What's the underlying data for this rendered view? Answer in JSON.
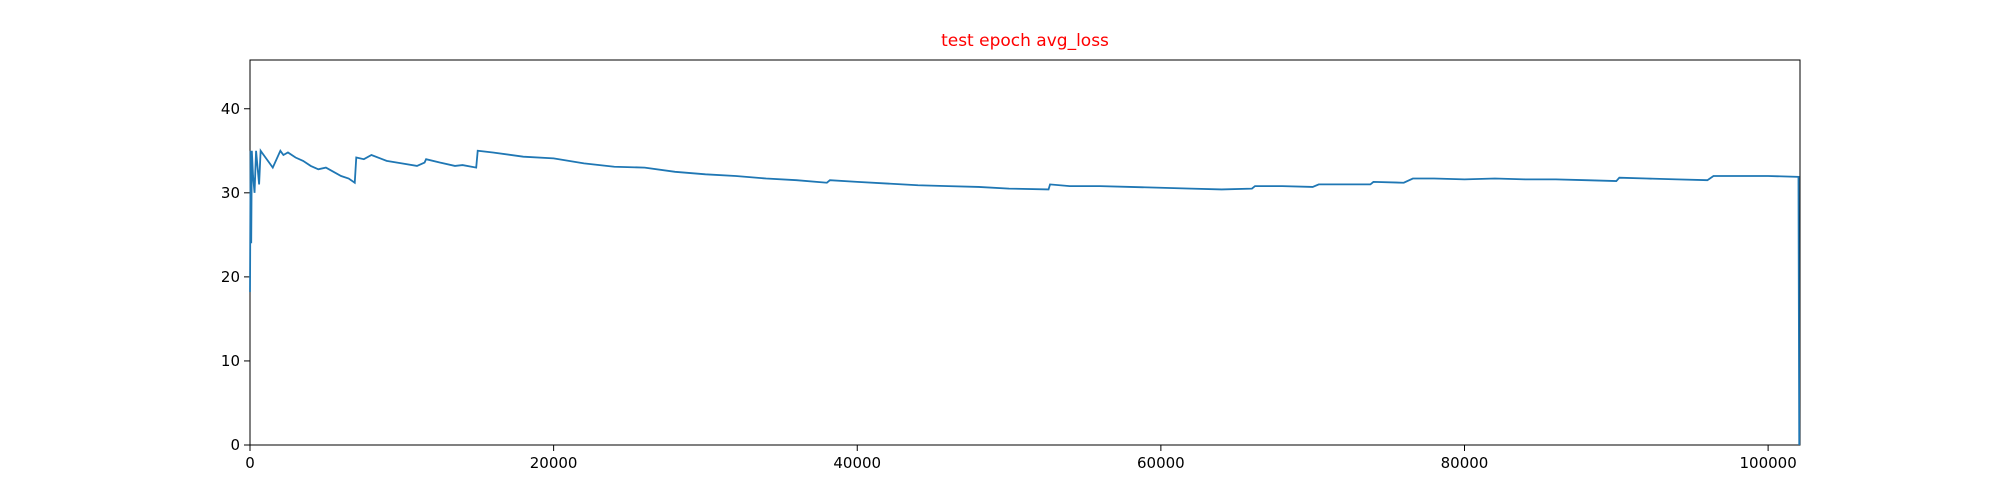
{
  "chart_data": {
    "type": "line",
    "title": "test epoch avg_loss",
    "title_color": "#ff0000",
    "x": [
      0,
      40,
      80,
      120,
      200,
      300,
      400,
      500,
      600,
      700,
      900,
      1300,
      1500,
      2000,
      2200,
      2500,
      3000,
      3500,
      4000,
      4500,
      5000,
      5500,
      6000,
      6500,
      6900,
      7000,
      7500,
      8000,
      9000,
      10000,
      11000,
      11500,
      11600,
      12500,
      13500,
      14000,
      14900,
      15000,
      16000,
      18000,
      20000,
      22000,
      24000,
      26000,
      28000,
      30000,
      32000,
      34000,
      36000,
      38000,
      38200,
      40000,
      42000,
      44000,
      46000,
      48000,
      50000,
      52600,
      52700,
      54000,
      56000,
      58000,
      60000,
      62000,
      64000,
      66000,
      66200,
      68000,
      70000,
      70400,
      72000,
      73800,
      74000,
      76000,
      76600,
      78000,
      80000,
      82000,
      84000,
      86000,
      88000,
      90000,
      90200,
      92000,
      94000,
      96000,
      96400,
      98000,
      100000,
      102000,
      102050
    ],
    "series": [
      {
        "name": "avg_loss",
        "color": "#1f77b4",
        "values": [
          18.2,
          35,
          24,
          35,
          32,
          30,
          35,
          33,
          31,
          35,
          34.5,
          33.5,
          33,
          35,
          34.5,
          34.8,
          34.2,
          33.8,
          33.2,
          32.8,
          33,
          32.5,
          32,
          31.7,
          31.2,
          34.2,
          34,
          34.5,
          33.8,
          33.5,
          33.2,
          33.6,
          34,
          33.6,
          33.2,
          33.3,
          33,
          35,
          34.8,
          34.3,
          34.1,
          33.5,
          33.1,
          33,
          32.5,
          32.2,
          32,
          31.7,
          31.5,
          31.2,
          31.5,
          31.3,
          31.1,
          30.9,
          30.8,
          30.7,
          30.5,
          30.4,
          31,
          30.8,
          30.8,
          30.7,
          30.6,
          30.5,
          30.4,
          30.5,
          30.8,
          30.8,
          30.7,
          31,
          31,
          31,
          31.3,
          31.2,
          31.7,
          31.7,
          31.6,
          31.7,
          31.6,
          31.6,
          31.5,
          31.4,
          31.8,
          31.7,
          31.6,
          31.5,
          32,
          32,
          32,
          31.9,
          0
        ]
      }
    ],
    "xlim": [
      0,
      102100
    ],
    "ylim": [
      0,
      45.8
    ],
    "xticks": [
      0,
      20000,
      40000,
      60000,
      80000,
      100000
    ],
    "yticks": [
      0,
      10,
      20,
      30,
      40
    ]
  }
}
